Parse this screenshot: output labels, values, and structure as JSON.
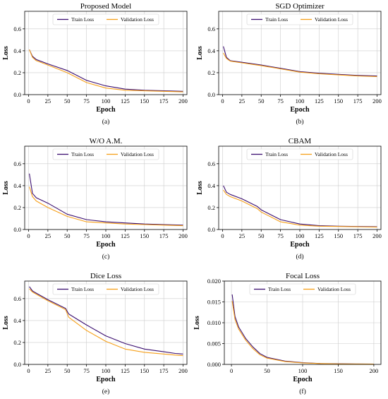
{
  "colors": {
    "train": "#3b0f70",
    "validation": "#f6a01a",
    "grid": "#cccccc",
    "axis": "#000000"
  },
  "chart_data": [
    {
      "type": "line",
      "title": "Proposed Model",
      "caption": "(a)",
      "xlabel": "Epoch",
      "ylabel": "Loss",
      "xlim": [
        -5,
        205
      ],
      "ylim": [
        0.0,
        0.76
      ],
      "xticks": [
        "0",
        "25",
        "50",
        "75",
        "100",
        "125",
        "150",
        "175",
        "200"
      ],
      "yticks": [
        "0.0",
        "0.2",
        "0.4",
        "0.6"
      ],
      "grid": true,
      "legend": "top-center",
      "x": [
        1,
        5,
        10,
        25,
        50,
        75,
        100,
        125,
        150,
        175,
        200
      ],
      "series": [
        {
          "name": "Train Loss",
          "values": [
            0.41,
            0.35,
            0.32,
            0.28,
            0.22,
            0.13,
            0.08,
            0.05,
            0.04,
            0.035,
            0.03
          ]
        },
        {
          "name": "Validation Loss",
          "values": [
            0.41,
            0.34,
            0.31,
            0.27,
            0.2,
            0.11,
            0.06,
            0.04,
            0.035,
            0.03,
            0.025
          ]
        }
      ]
    },
    {
      "type": "line",
      "title": "SGD Optimizer",
      "caption": "(b)",
      "xlabel": "Epoch",
      "ylabel": "Loss",
      "xlim": [
        -5,
        205
      ],
      "ylim": [
        0.0,
        0.76
      ],
      "xticks": [
        "0",
        "25",
        "50",
        "75",
        "100",
        "125",
        "150",
        "175",
        "200"
      ],
      "yticks": [
        "0.0",
        "0.2",
        "0.4",
        "0.6"
      ],
      "grid": true,
      "legend": "top-center",
      "x": [
        1,
        5,
        10,
        25,
        50,
        75,
        100,
        125,
        150,
        175,
        200
      ],
      "series": [
        {
          "name": "Train Loss",
          "values": [
            0.44,
            0.34,
            0.31,
            0.295,
            0.27,
            0.24,
            0.21,
            0.195,
            0.185,
            0.175,
            0.17
          ]
        },
        {
          "name": "Validation Loss",
          "values": [
            0.38,
            0.33,
            0.305,
            0.29,
            0.265,
            0.235,
            0.205,
            0.19,
            0.18,
            0.17,
            0.165
          ]
        }
      ]
    },
    {
      "type": "line",
      "title": "W/O A.M.",
      "caption": "(c)",
      "xlabel": "Epoch",
      "ylabel": "Loss",
      "xlim": [
        -5,
        205
      ],
      "ylim": [
        0.0,
        0.76
      ],
      "xticks": [
        "0",
        "25",
        "50",
        "75",
        "100",
        "125",
        "150",
        "175",
        "200"
      ],
      "yticks": [
        "0.0",
        "0.2",
        "0.4",
        "0.6"
      ],
      "grid": true,
      "legend": "top-center",
      "x": [
        1,
        5,
        10,
        25,
        50,
        75,
        100,
        125,
        150,
        175,
        200
      ],
      "series": [
        {
          "name": "Train Loss",
          "values": [
            0.51,
            0.33,
            0.29,
            0.24,
            0.14,
            0.09,
            0.07,
            0.06,
            0.05,
            0.045,
            0.04
          ]
        },
        {
          "name": "Validation Loss",
          "values": [
            0.39,
            0.3,
            0.26,
            0.2,
            0.12,
            0.07,
            0.06,
            0.05,
            0.045,
            0.04,
            0.035
          ]
        }
      ]
    },
    {
      "type": "line",
      "title": "CBAM",
      "caption": "(d)",
      "xlabel": "Epoch",
      "ylabel": "Loss",
      "xlim": [
        -5,
        205
      ],
      "ylim": [
        0.0,
        0.76
      ],
      "xticks": [
        "0",
        "25",
        "50",
        "75",
        "100",
        "125",
        "150",
        "175",
        "200"
      ],
      "yticks": [
        "0.0",
        "0.2",
        "0.4",
        "0.6"
      ],
      "grid": true,
      "legend": "top-center",
      "x": [
        1,
        5,
        10,
        25,
        45,
        50,
        75,
        100,
        125,
        150,
        175,
        200
      ],
      "series": [
        {
          "name": "Train Loss",
          "values": [
            0.4,
            0.34,
            0.32,
            0.28,
            0.21,
            0.18,
            0.09,
            0.05,
            0.035,
            0.03,
            0.028,
            0.025
          ]
        },
        {
          "name": "Validation Loss",
          "values": [
            0.36,
            0.32,
            0.3,
            0.26,
            0.19,
            0.16,
            0.07,
            0.04,
            0.03,
            0.028,
            0.025,
            0.022
          ]
        }
      ]
    },
    {
      "type": "line",
      "title": "Dice Loss",
      "caption": "(e)",
      "xlabel": "Epoch",
      "ylabel": "Loss",
      "xlim": [
        -5,
        205
      ],
      "ylim": [
        0.0,
        0.76
      ],
      "xticks": [
        "0",
        "25",
        "50",
        "75",
        "100",
        "125",
        "150",
        "175",
        "200"
      ],
      "yticks": [
        "0.0",
        "0.2",
        "0.4",
        "0.6"
      ],
      "grid": true,
      "legend": "top-center",
      "x": [
        1,
        5,
        10,
        25,
        48,
        52,
        75,
        100,
        125,
        150,
        175,
        190,
        200
      ],
      "series": [
        {
          "name": "Train Loss",
          "values": [
            0.71,
            0.67,
            0.65,
            0.59,
            0.51,
            0.46,
            0.36,
            0.26,
            0.19,
            0.14,
            0.115,
            0.1,
            0.095
          ]
        },
        {
          "name": "Validation Loss",
          "values": [
            0.69,
            0.66,
            0.64,
            0.58,
            0.5,
            0.43,
            0.31,
            0.21,
            0.14,
            0.11,
            0.095,
            0.085,
            0.08
          ]
        }
      ]
    },
    {
      "type": "line",
      "title": "Focal Loss",
      "caption": "(f)",
      "xlabel": "Epoch",
      "ylabel": "Loss",
      "xlim": [
        -10,
        210
      ],
      "ylim": [
        0.0,
        0.02
      ],
      "xticks": [
        "0",
        "50",
        "100",
        "150",
        "200"
      ],
      "yticks": [
        "0.000",
        "0.005",
        "0.010",
        "0.015",
        "0.020"
      ],
      "grid": true,
      "legend": "top-center",
      "x": [
        1,
        5,
        10,
        20,
        30,
        40,
        50,
        75,
        100,
        125,
        150,
        175,
        200
      ],
      "series": [
        {
          "name": "Train Loss",
          "values": [
            0.0168,
            0.0115,
            0.009,
            0.0062,
            0.0042,
            0.0026,
            0.0017,
            0.0008,
            0.0004,
            0.0002,
            0.00015,
            0.0001,
            8e-05
          ]
        },
        {
          "name": "Validation Loss",
          "values": [
            0.0152,
            0.0108,
            0.0085,
            0.0058,
            0.0038,
            0.0023,
            0.0015,
            0.0007,
            0.00035,
            0.0002,
            0.00012,
            0.0001,
            7e-05
          ]
        }
      ]
    }
  ]
}
